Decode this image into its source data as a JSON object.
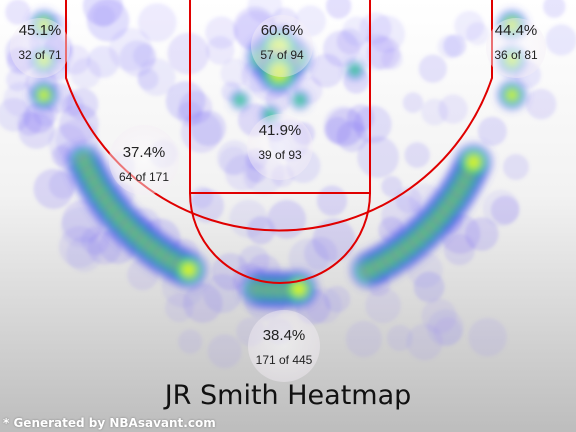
{
  "chart_data": {
    "type": "heatmap",
    "title": "JR Smith Heatmap",
    "zones": [
      {
        "name": "left-corner-three",
        "pct": "45.1%",
        "made": 32,
        "attempts": 71,
        "count_label": "32 of 71"
      },
      {
        "name": "restricted-area",
        "pct": "60.6%",
        "made": 57,
        "attempts": 94,
        "count_label": "57 of 94"
      },
      {
        "name": "right-corner-three",
        "pct": "44.4%",
        "made": 36,
        "attempts": 81,
        "count_label": "36 of 81"
      },
      {
        "name": "left-midrange",
        "pct": "37.4%",
        "made": 64,
        "attempts": 171,
        "count_label": "64 of 171"
      },
      {
        "name": "paint-non-ra",
        "pct": "41.9%",
        "made": 39,
        "attempts": 93,
        "count_label": "39 of 93"
      },
      {
        "name": "above-break-three",
        "pct": "38.4%",
        "made": 171,
        "attempts": 445,
        "count_label": "171 of 445"
      }
    ]
  },
  "credit": "* Generated by NBAsavant.com",
  "colors": {
    "court_lines": "#e00000",
    "heat_low": "#4b4bf0",
    "heat_mid": "#22e070",
    "heat_high": "#ffff00",
    "background_top": "#ffffff",
    "background_bottom": "#bdbdbd"
  }
}
